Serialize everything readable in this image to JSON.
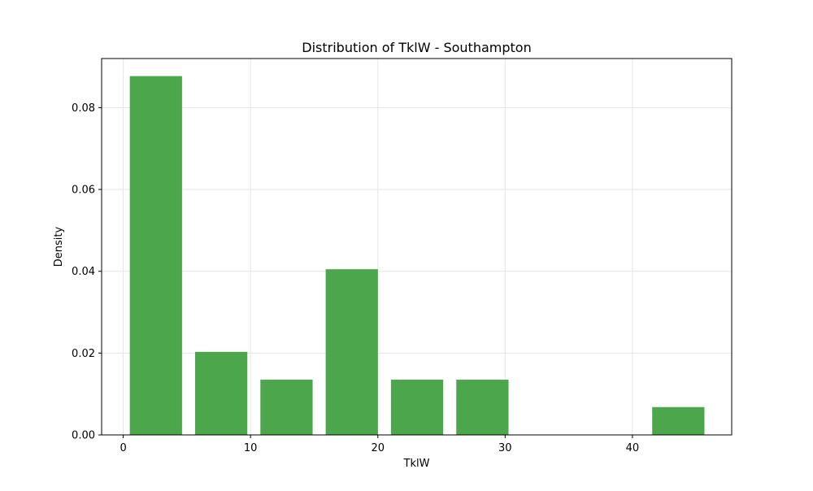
{
  "chart_data": {
    "type": "bar",
    "title": "Distribution of TklW - Southampton",
    "xlabel": "TklW",
    "ylabel": "Density",
    "xlim": [
      -1.7,
      47.8
    ],
    "ylim": [
      0,
      0.092
    ],
    "xticks": [
      0,
      10,
      20,
      30,
      40
    ],
    "xtick_labels": [
      "0",
      "10",
      "20",
      "30",
      "40"
    ],
    "yticks": [
      0,
      0.02,
      0.04,
      0.06,
      0.08
    ],
    "ytick_labels": [
      "0.00",
      "0.02",
      "0.04",
      "0.06",
      "0.08"
    ],
    "grid": true,
    "bin_edges": [
      0,
      5.13,
      10.26,
      15.39,
      20.52,
      25.65,
      30.78,
      35.91,
      41.04,
      46.17
    ],
    "values": [
      0.0877,
      0.0203,
      0.0135,
      0.0405,
      0.0135,
      0.0135,
      0,
      0,
      0.0068
    ],
    "bar_color": "#4ca64c",
    "grid_color": "#e6e6e6"
  }
}
